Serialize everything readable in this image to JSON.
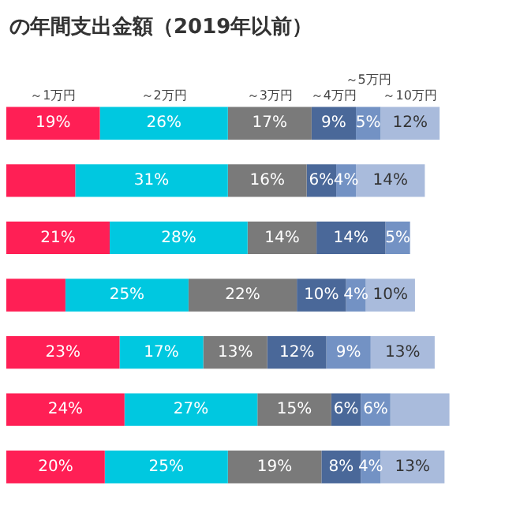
{
  "chart_data": {
    "type": "bar",
    "orientation": "horizontal",
    "stacked": true,
    "title": "の年間支出金額（2019年以前）",
    "categories": [
      null,
      null,
      null,
      null,
      null,
      null,
      null
    ],
    "tick_labels": false,
    "legend": false,
    "series": [
      {
        "name": "～1万円",
        "color": "#ff1f55",
        "values": [
          19,
          14,
          21,
          12,
          23,
          24,
          20
        ],
        "value_labels": [
          "19%",
          null,
          "21%",
          null,
          "23%",
          "24%",
          "20%"
        ]
      },
      {
        "name": "～2万円",
        "color": "#00c8e0",
        "values": [
          26,
          31,
          28,
          25,
          17,
          27,
          25
        ],
        "value_labels": [
          "26%",
          "31%",
          "28%",
          "25%",
          "17%",
          "27%",
          "25%"
        ]
      },
      {
        "name": "～3万円",
        "color": "#7a7a7a",
        "values": [
          17,
          16,
          14,
          22,
          13,
          15,
          19
        ],
        "value_labels": [
          "17%",
          "16%",
          "14%",
          "22%",
          "13%",
          "15%",
          "19%"
        ]
      },
      {
        "name": "～4万円",
        "color": "#4a6899",
        "values": [
          9,
          6,
          14,
          10,
          12,
          6,
          8
        ],
        "value_labels": [
          "9%",
          "6%",
          "14%",
          "10%",
          "12%",
          "6%",
          "8%"
        ]
      },
      {
        "name": "～5万円",
        "color": "#7392c4",
        "values": [
          5,
          4,
          5,
          4,
          9,
          6,
          4
        ],
        "value_labels": [
          "5%",
          "4%",
          "5%",
          "4%",
          "9%",
          "6%",
          "4%"
        ]
      },
      {
        "name": "～10万円",
        "color": "#a9bbdc",
        "values": [
          12,
          14,
          null,
          10,
          13,
          12,
          13
        ],
        "value_labels": [
          "12%",
          "14%",
          null,
          "10%",
          "13%",
          null,
          "13%"
        ]
      }
    ]
  }
}
